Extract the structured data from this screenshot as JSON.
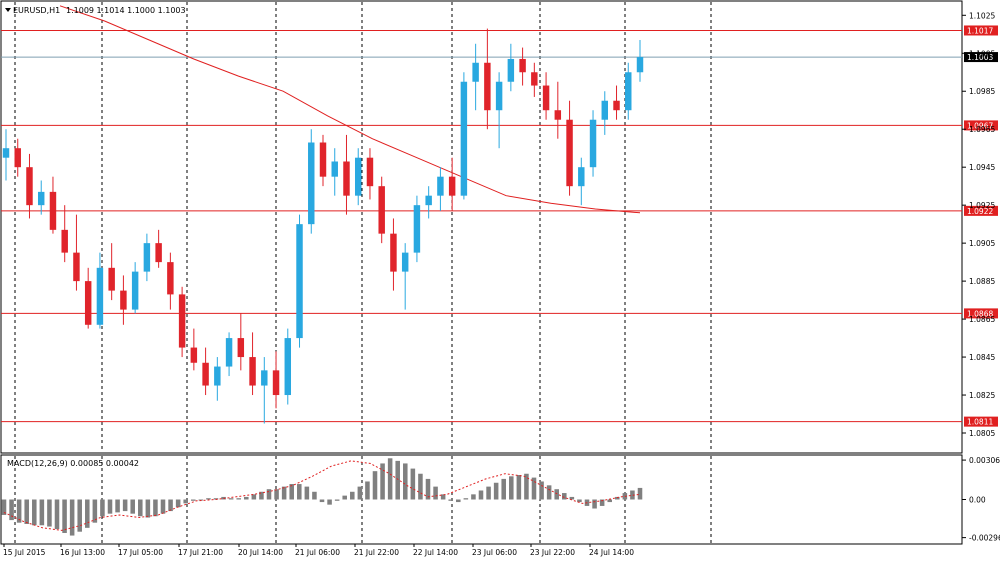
{
  "header": {
    "symbol": "EURUSD,H1",
    "ohlc": "1.1009 1.1014 1.1000 1.1003"
  },
  "macd_header": "MACD(12,26,9) 0.00085 0.00042",
  "colors": {
    "bull": "#29a8e0",
    "bear": "#e0242b",
    "level": "#e02020",
    "ma": "#e02020",
    "grid": "#000000",
    "macd_bar": "#808080",
    "signal": "#e02020",
    "current_line": "#7f9fb0"
  },
  "chart_data": [
    {
      "type": "candlestick",
      "title": "EURUSD,H1",
      "ylim": [
        1.0795,
        1.1032
      ],
      "y_ticks": [
        "1.1025",
        "1.1005",
        "1.0985",
        "1.0965",
        "1.0945",
        "1.0925",
        "1.0905",
        "1.0885",
        "1.0865",
        "1.0845",
        "1.0825",
        "1.0805"
      ],
      "levels": [
        {
          "value": 1.1017,
          "label": "1.1017"
        },
        {
          "value": 1.0967,
          "label": "1.0967"
        },
        {
          "value": 1.0922,
          "label": "1.0922"
        },
        {
          "value": 1.0868,
          "label": "1.0868"
        },
        {
          "value": 1.0811,
          "label": "1.0811"
        }
      ],
      "current_price": {
        "value": 1.1003,
        "label": "1.1003"
      },
      "moving_average": [
        1.103,
        1.1022,
        1.1012,
        1.1002,
        1.0993,
        1.0985,
        1.0972,
        1.096,
        1.095,
        1.094,
        1.093,
        1.0926,
        1.0923,
        1.0921
      ],
      "candles": [
        [
          1.095,
          1.0965,
          1.0938,
          1.0955
        ],
        [
          1.0955,
          1.096,
          1.094,
          1.0945
        ],
        [
          1.0945,
          1.0952,
          1.0918,
          1.0925
        ],
        [
          1.0925,
          1.0938,
          1.092,
          1.0932
        ],
        [
          1.0932,
          1.094,
          1.091,
          1.0912
        ],
        [
          1.0912,
          1.0925,
          1.0895,
          1.09
        ],
        [
          1.09,
          1.092,
          1.088,
          1.0885
        ],
        [
          1.0885,
          1.0892,
          1.086,
          1.0862
        ],
        [
          1.0862,
          1.09,
          1.086,
          1.0892
        ],
        [
          1.0892,
          1.0905,
          1.0875,
          1.088
        ],
        [
          1.088,
          1.0888,
          1.0862,
          1.087
        ],
        [
          1.087,
          1.0895,
          1.0868,
          1.089
        ],
        [
          1.089,
          1.091,
          1.0885,
          1.0905
        ],
        [
          1.0905,
          1.0912,
          1.0892,
          1.0895
        ],
        [
          1.0895,
          1.09,
          1.087,
          1.0878
        ],
        [
          1.0878,
          1.0882,
          1.0845,
          1.085
        ],
        [
          1.085,
          1.086,
          1.0838,
          1.0842
        ],
        [
          1.0842,
          1.085,
          1.0825,
          1.083
        ],
        [
          1.083,
          1.0845,
          1.0822,
          1.084
        ],
        [
          1.084,
          1.0858,
          1.0835,
          1.0855
        ],
        [
          1.0855,
          1.0868,
          1.0838,
          1.0845
        ],
        [
          1.0845,
          1.0858,
          1.0825,
          1.083
        ],
        [
          1.083,
          1.0845,
          1.081,
          1.0838
        ],
        [
          1.0838,
          1.0848,
          1.0818,
          1.0825
        ],
        [
          1.0825,
          1.086,
          1.082,
          1.0855
        ],
        [
          1.0855,
          1.092,
          1.085,
          1.0915
        ],
        [
          1.0915,
          1.0965,
          1.091,
          1.0958
        ],
        [
          1.0958,
          1.0962,
          1.0935,
          1.094
        ],
        [
          1.094,
          1.0955,
          1.093,
          1.0948
        ],
        [
          1.0948,
          1.0962,
          1.092,
          1.093
        ],
        [
          1.093,
          1.0955,
          1.0925,
          1.095
        ],
        [
          1.095,
          1.0955,
          1.0928,
          1.0935
        ],
        [
          1.0935,
          1.094,
          1.0905,
          1.091
        ],
        [
          1.091,
          1.0918,
          1.088,
          1.089
        ],
        [
          1.089,
          1.0905,
          1.087,
          1.09
        ],
        [
          1.09,
          1.093,
          1.0895,
          1.0925
        ],
        [
          1.0925,
          1.0935,
          1.0918,
          1.093
        ],
        [
          1.093,
          1.0945,
          1.0922,
          1.094
        ],
        [
          1.094,
          1.095,
          1.0922,
          1.093
        ],
        [
          1.093,
          1.0995,
          1.0928,
          1.099
        ],
        [
          1.099,
          1.101,
          1.0975,
          1.1
        ],
        [
          1.1,
          1.1018,
          1.0965,
          1.0975
        ],
        [
          1.0975,
          1.0995,
          1.0955,
          1.099
        ],
        [
          1.099,
          1.101,
          1.0985,
          1.1002
        ],
        [
          1.1002,
          1.1008,
          1.0988,
          1.0995
        ],
        [
          1.0995,
          1.1,
          1.0982,
          1.0988
        ],
        [
          1.0988,
          1.0995,
          1.097,
          1.0975
        ],
        [
          1.0975,
          1.099,
          1.096,
          1.097
        ],
        [
          1.097,
          1.098,
          1.093,
          1.0935
        ],
        [
          1.0935,
          1.095,
          1.0925,
          1.0945
        ],
        [
          1.0945,
          1.0975,
          1.094,
          1.097
        ],
        [
          1.097,
          1.0985,
          1.0962,
          1.098
        ],
        [
          1.098,
          1.0988,
          1.097,
          1.0975
        ],
        [
          1.0975,
          1.1,
          1.097,
          1.0995
        ],
        [
          1.0995,
          1.1012,
          1.099,
          1.1003
        ]
      ]
    },
    {
      "type": "bar",
      "title": "MACD(12,26,9)",
      "ylim": [
        -0.0033,
        0.0033
      ],
      "y_ticks": [
        "0.00306",
        "0.00",
        "-0.00296"
      ],
      "macd_label": "0.00085",
      "signal_label": "0.00042",
      "values": [
        -0.0012,
        -0.0016,
        -0.0018,
        -0.0019,
        -0.002,
        -0.002,
        -0.0021,
        -0.0023,
        -0.0026,
        -0.0028,
        -0.0025,
        -0.0022,
        -0.0018,
        -0.0013,
        -0.0011,
        -0.001,
        -0.0009,
        -0.0011,
        -0.0013,
        -0.0014,
        -0.0013,
        -0.0011,
        -0.0009,
        -0.0006,
        -0.0003,
        -0.0001,
        0.0,
        0.0001,
        0.0001,
        0.0002,
        0.0001,
        0.0001,
        0.0002,
        0.0004,
        0.0006,
        0.0008,
        0.0008,
        0.001,
        0.0012,
        0.0012,
        0.001,
        0.0006,
        -0.0002,
        -0.0004,
        -0.0001,
        0.0003,
        0.0006,
        0.001,
        0.0014,
        0.0022,
        0.0028,
        0.0032,
        0.003,
        0.0028,
        0.0024,
        0.002,
        0.0016,
        0.001,
        0.0004,
        -0.0001,
        -0.0002,
        0.0001,
        0.0004,
        0.0007,
        0.001,
        0.0013,
        0.0016,
        0.0018,
        0.0019,
        0.002,
        0.0017,
        0.0014,
        0.0011,
        0.0008,
        0.0005,
        0.0002,
        -0.0002,
        -0.0005,
        -0.0007,
        -0.0005,
        -0.0002,
        0.0002,
        0.0005,
        0.0007,
        0.0009
      ],
      "signal": [
        -0.001,
        -0.0017,
        -0.0022,
        -0.0024,
        -0.002,
        -0.0014,
        -0.0012,
        -0.0014,
        -0.0012,
        -0.0006,
        -0.0001,
        0.0,
        0.0002,
        0.0004,
        0.0007,
        0.0011,
        0.0018,
        0.0026,
        0.003,
        0.0028,
        0.002,
        0.001,
        0.0002,
        0.0004,
        0.001,
        0.0016,
        0.002,
        0.0018,
        0.001,
        0.0002,
        -0.0003,
        -0.0001,
        0.0002,
        0.0004
      ]
    }
  ],
  "x_axis_labels": [
    "15 Jul 2015",
    "16 Jul 13:00",
    "17 Jul 05:00",
    "17 Jul 21:00",
    "20 Jul 14:00",
    "21 Jul 06:00",
    "21 Jul 22:00",
    "22 Jul 14:00",
    "23 Jul 06:00",
    "23 Jul 22:00",
    "24 Jul 14:00"
  ]
}
